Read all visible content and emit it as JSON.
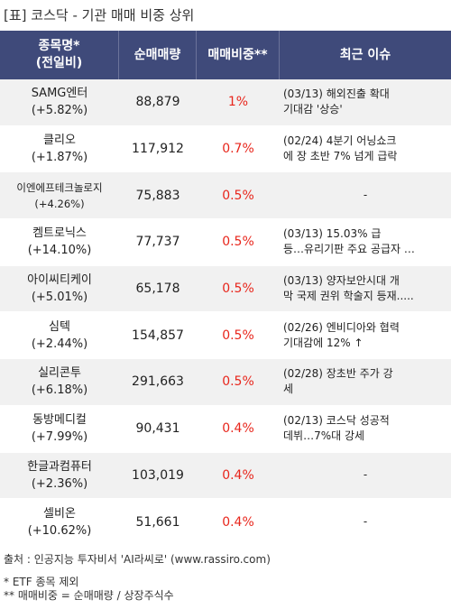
{
  "title": "[표] 코스닥 - 기관 매매 비중 상위",
  "headers": {
    "name_line1": "종목명*",
    "name_line2": "(전일비)",
    "qty": "순매매량",
    "ratio": "매매비중**",
    "issue": "최근 이슈"
  },
  "rows": [
    {
      "name": "SAMG엔터",
      "change": "(+5.82%)",
      "qty": "88,879",
      "ratio": "1%",
      "issue1": "(03/13) 해외진출 확대",
      "issue2": "기대감 '상승'"
    },
    {
      "name": "클리오",
      "change": "(+1.87%)",
      "qty": "117,912",
      "ratio": "0.7%",
      "issue1": "(02/24) 4분기 어닝쇼크",
      "issue2": "에 장 초반 7% 넘게 급락"
    },
    {
      "name": "이엔에프테크놀로지",
      "change": "(+4.26%)",
      "qty": "75,883",
      "ratio": "0.5%",
      "issue1": "-",
      "issue2": ""
    },
    {
      "name": "켐트로닉스",
      "change": "(+14.10%)",
      "qty": "77,737",
      "ratio": "0.5%",
      "issue1": "(03/13) 15.03% 급",
      "issue2": "등…유리기판 주요 공급자 …"
    },
    {
      "name": "아이씨티케이",
      "change": "(+5.01%)",
      "qty": "65,178",
      "ratio": "0.5%",
      "issue1": "(03/13) 양자보안시대 개",
      "issue2": "막 국제 권위 학술지 등재....."
    },
    {
      "name": "심텍",
      "change": "(+2.44%)",
      "qty": "154,857",
      "ratio": "0.5%",
      "issue1": "(02/26) 엔비디아와 협력",
      "issue2": " 기대감에 12% ↑"
    },
    {
      "name": "실리콘투",
      "change": "(+6.18%)",
      "qty": "291,663",
      "ratio": "0.5%",
      "issue1": "(02/28) 장초반 주가 강",
      "issue2": "세"
    },
    {
      "name": "동방메디컬",
      "change": "(+7.99%)",
      "qty": "90,431",
      "ratio": "0.4%",
      "issue1": "(02/13) 코스닥 성공적",
      "issue2": "데뷔…7%대 강세"
    },
    {
      "name": "한글과컴퓨터",
      "change": "(+2.36%)",
      "qty": "103,019",
      "ratio": "0.4%",
      "issue1": "-",
      "issue2": ""
    },
    {
      "name": "셀비온",
      "change": "(+10.62%)",
      "qty": "51,661",
      "ratio": "0.4%",
      "issue1": "-",
      "issue2": ""
    }
  ],
  "footer": {
    "source": "출처 : 인공지능 투자비서 'AI라씨로' (www.rassiro.com)",
    "note1": "* ETF 종목 제외",
    "note2": "** 매매비중 = 순매매량 / 상장주식수"
  },
  "colors": {
    "header_bg": "#3f4a7a",
    "ratio_text": "#e8261c",
    "stripe": "#f1f1f1"
  }
}
